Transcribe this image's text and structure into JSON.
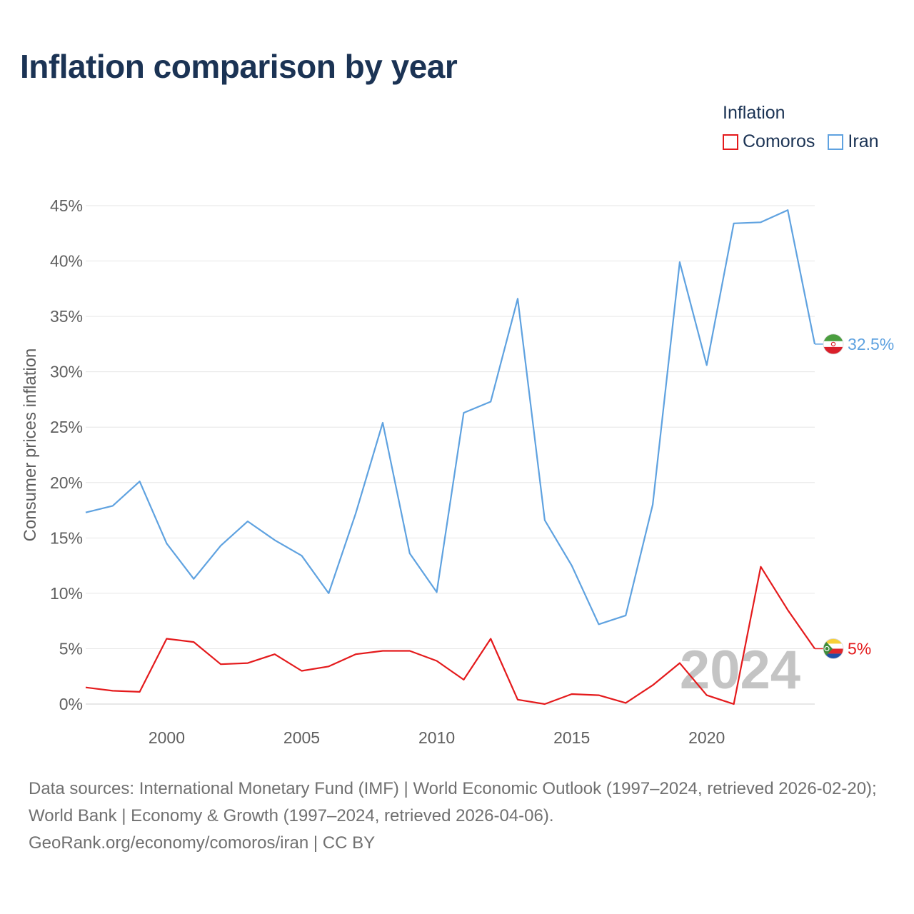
{
  "header": {
    "title": "Inflation comparison by year"
  },
  "legend": {
    "title": "Inflation",
    "items": [
      {
        "label": "Comoros",
        "color": "#e41a1c"
      },
      {
        "label": "Iran",
        "color": "#5fa2e0"
      }
    ]
  },
  "chart_data": {
    "type": "line",
    "title": "Inflation comparison by year",
    "xlabel": "",
    "ylabel": "Consumer prices inflation",
    "x": [
      1997,
      1998,
      1999,
      2000,
      2001,
      2002,
      2003,
      2004,
      2005,
      2006,
      2007,
      2008,
      2009,
      2010,
      2011,
      2012,
      2013,
      2014,
      2015,
      2016,
      2017,
      2018,
      2019,
      2020,
      2021,
      2022,
      2023,
      2024
    ],
    "xlim": [
      1997,
      2024
    ],
    "ylim": [
      0,
      45
    ],
    "x_ticks": [
      2000,
      2005,
      2010,
      2015,
      2020
    ],
    "y_ticks": [
      0,
      5,
      10,
      15,
      20,
      25,
      30,
      35,
      40,
      45
    ],
    "y_tick_labels": [
      "0%",
      "5%",
      "10%",
      "15%",
      "20%",
      "25%",
      "30%",
      "35%",
      "40%",
      "45%"
    ],
    "grid": true,
    "year_watermark": "2024",
    "series": [
      {
        "name": "Comoros",
        "color": "#e41a1c",
        "end_label": "5%",
        "flag_icon": "comoros-flag-icon",
        "values": [
          1.5,
          1.2,
          1.1,
          5.9,
          5.6,
          3.6,
          3.7,
          4.5,
          3.0,
          3.4,
          4.5,
          4.8,
          4.8,
          3.9,
          2.2,
          5.9,
          0.4,
          0.0,
          0.9,
          0.8,
          0.1,
          1.7,
          3.7,
          0.8,
          0.0,
          12.4,
          8.5,
          5.0
        ]
      },
      {
        "name": "Iran",
        "color": "#5fa2e0",
        "end_label": "32.5%",
        "flag_icon": "iran-flag-icon",
        "values": [
          17.3,
          17.9,
          20.1,
          14.5,
          11.3,
          14.3,
          16.5,
          14.8,
          13.4,
          10.0,
          17.2,
          25.4,
          13.6,
          10.1,
          26.3,
          27.3,
          36.6,
          16.6,
          12.5,
          7.2,
          8.0,
          18.0,
          39.9,
          30.6,
          43.4,
          43.5,
          44.6,
          32.5
        ]
      }
    ]
  },
  "footer": {
    "source_line1": "Data sources: International Monetary Fund (IMF) | World Economic Outlook (1997–2024, retrieved 2026-02-20); World Bank | Economy & Growth (1997–2024, retrieved 2026-04-06).",
    "source_line2": "GeoRank.org/economy/comoros/iran | CC BY"
  }
}
